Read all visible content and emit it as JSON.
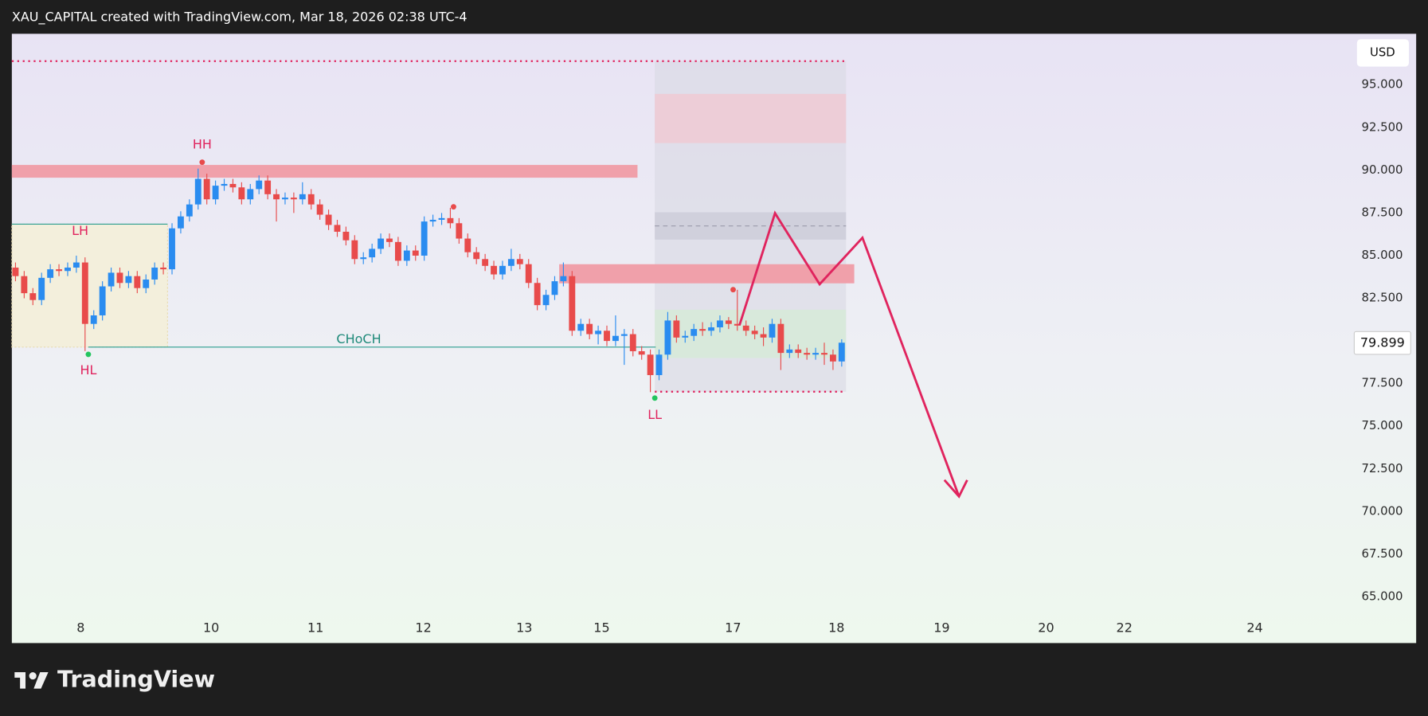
{
  "header": "XAU_CAPITAL created with TradingView.com, Mar 18, 2026 02:38 UTC-4",
  "footer": {
    "brand": "TradingView"
  },
  "chart_data": {
    "type": "candlestick",
    "currency": "USD",
    "up_color": "#2a8cf0",
    "down_color": "#e84b4b",
    "grid": false,
    "ylim": [
      63.9,
      98
    ],
    "yticks": [
      {
        "value": 95,
        "label": "95.000"
      },
      {
        "value": 92.5,
        "label": "92.500"
      },
      {
        "value": 90,
        "label": "90.000"
      },
      {
        "value": 87.5,
        "label": "87.500"
      },
      {
        "value": 85,
        "label": "85.000"
      },
      {
        "value": 82.5,
        "label": "82.500"
      },
      {
        "value": 77.5,
        "label": "77.500"
      },
      {
        "value": 75,
        "label": "75.000"
      },
      {
        "value": 72.5,
        "label": "72.500"
      },
      {
        "value": 70,
        "label": "70.000"
      },
      {
        "value": 67.5,
        "label": "67.500"
      },
      {
        "value": 65,
        "label": "65.000"
      }
    ],
    "xlim": [
      -0.42,
      153.2
    ],
    "xticks": [
      {
        "value": 7.5,
        "label": "8"
      },
      {
        "value": 22.5,
        "label": "10"
      },
      {
        "value": 34.5,
        "label": "11"
      },
      {
        "value": 46.9,
        "label": "12"
      },
      {
        "value": 58.5,
        "label": "13"
      },
      {
        "value": 67.4,
        "label": "15"
      },
      {
        "value": 82.5,
        "label": "17"
      },
      {
        "value": 94.4,
        "label": "18"
      },
      {
        "value": 106.5,
        "label": "19"
      },
      {
        "value": 118.5,
        "label": "20"
      },
      {
        "value": 127.5,
        "label": "22"
      },
      {
        "value": 142.5,
        "label": "24"
      }
    ],
    "annotations": {
      "hh": "HH",
      "lh": "LH",
      "hl": "HL",
      "ll": "LL",
      "choch": "CHoCH"
    },
    "open": [
      84.3,
      83.8,
      82.8,
      82.4,
      83.7,
      84.2,
      84.1,
      84.3,
      84.6,
      81.0,
      81.5,
      83.2,
      84.0,
      83.4,
      83.8,
      83.1,
      83.6,
      84.3,
      84.2,
      86.6,
      87.3,
      88.0,
      89.5,
      88.3,
      89.1,
      89.2,
      89.0,
      88.3,
      88.9,
      89.4,
      88.6,
      88.3,
      88.4,
      88.3,
      88.6,
      88.0,
      87.4,
      86.8,
      86.4,
      85.9,
      84.8,
      84.9,
      85.4,
      86.0,
      85.8,
      84.7,
      85.3,
      85.0,
      87.0,
      87.1,
      87.2,
      86.9,
      86.0,
      85.2,
      84.8,
      84.4,
      83.9,
      84.4,
      84.8,
      84.5,
      83.4,
      82.1,
      82.7,
      83.5,
      83.8,
      80.6,
      81.0,
      80.4,
      80.6,
      80.0,
      80.3,
      80.4,
      79.4,
      79.2,
      78.0,
      79.2,
      81.2,
      80.2,
      80.3,
      80.7,
      80.6,
      80.8,
      81.2,
      81.0,
      80.9,
      80.6,
      80.4,
      80.2,
      81.0,
      79.3,
      79.5,
      79.3,
      79.2,
      79.3,
      79.2,
      78.8
    ],
    "high": [
      84.6,
      84.1,
      83.1,
      84.0,
      84.5,
      84.5,
      84.6,
      85.0,
      84.9,
      81.8,
      83.5,
      84.3,
      84.3,
      84.1,
      84.1,
      83.9,
      84.6,
      84.6,
      86.9,
      87.6,
      88.3,
      90.1,
      89.8,
      89.4,
      89.5,
      89.5,
      89.3,
      89.2,
      89.7,
      89.7,
      88.9,
      88.7,
      88.7,
      89.3,
      88.9,
      88.3,
      87.7,
      87.1,
      86.7,
      86.2,
      85.2,
      85.7,
      86.3,
      86.3,
      86.1,
      85.6,
      85.6,
      87.3,
      87.4,
      87.5,
      87.8,
      87.2,
      86.3,
      85.5,
      85.1,
      84.7,
      84.7,
      85.4,
      85.1,
      84.8,
      83.7,
      83.0,
      83.8,
      84.6,
      84.1,
      81.3,
      81.3,
      80.9,
      80.9,
      81.5,
      80.7,
      80.7,
      79.7,
      79.5,
      79.5,
      81.7,
      81.5,
      80.6,
      81.0,
      81.1,
      81.1,
      81.5,
      81.4,
      83.0,
      81.2,
      80.9,
      80.8,
      81.3,
      81.3,
      79.8,
      79.8,
      79.6,
      79.6,
      79.9,
      79.5,
      80.1
    ],
    "low": [
      83.5,
      82.5,
      82.1,
      82.1,
      83.4,
      83.8,
      83.8,
      84.0,
      79.4,
      80.7,
      81.2,
      82.9,
      83.1,
      83.1,
      82.8,
      82.8,
      83.3,
      83.9,
      83.9,
      86.3,
      87.0,
      87.7,
      88.0,
      88.0,
      88.8,
      88.7,
      88.0,
      88.0,
      88.6,
      88.3,
      87.0,
      88.0,
      87.5,
      88.0,
      87.7,
      87.1,
      86.5,
      86.1,
      85.6,
      84.5,
      84.5,
      84.6,
      85.1,
      85.5,
      84.4,
      84.4,
      84.7,
      84.7,
      86.7,
      86.8,
      86.6,
      85.7,
      84.9,
      84.5,
      84.1,
      83.6,
      83.6,
      84.1,
      84.2,
      83.1,
      81.8,
      81.8,
      82.4,
      83.2,
      80.3,
      80.3,
      80.1,
      79.8,
      79.7,
      79.7,
      78.6,
      79.1,
      78.9,
      77.0,
      77.7,
      78.9,
      79.9,
      79.9,
      80.0,
      80.3,
      80.3,
      80.5,
      80.7,
      80.6,
      80.3,
      80.1,
      79.7,
      79.9,
      78.3,
      79.0,
      79.0,
      78.9,
      78.9,
      78.6,
      78.3,
      78.5
    ],
    "close": [
      83.8,
      82.8,
      82.4,
      83.7,
      84.2,
      84.1,
      84.3,
      84.6,
      81.0,
      81.5,
      83.2,
      84.0,
      83.4,
      83.8,
      83.1,
      83.6,
      84.3,
      84.2,
      86.6,
      87.3,
      88.0,
      89.5,
      88.3,
      89.1,
      89.2,
      89.0,
      88.3,
      88.9,
      89.4,
      88.6,
      88.3,
      88.4,
      88.3,
      88.6,
      88.0,
      87.4,
      86.8,
      86.4,
      85.9,
      84.8,
      84.9,
      85.4,
      86.0,
      85.8,
      84.7,
      85.3,
      85.0,
      87.0,
      87.1,
      87.2,
      86.9,
      86.0,
      85.2,
      84.8,
      84.4,
      83.9,
      84.4,
      84.8,
      84.5,
      83.4,
      82.1,
      82.7,
      83.5,
      83.8,
      80.6,
      81.0,
      80.4,
      80.6,
      80.0,
      80.3,
      80.4,
      79.4,
      79.2,
      78.0,
      79.2,
      81.2,
      80.2,
      80.3,
      80.7,
      80.6,
      80.8,
      81.2,
      81.0,
      80.9,
      80.6,
      80.4,
      80.2,
      81.0,
      79.3,
      79.5,
      79.3,
      79.2,
      79.3,
      79.2,
      78.8,
      79.899
    ]
  }
}
